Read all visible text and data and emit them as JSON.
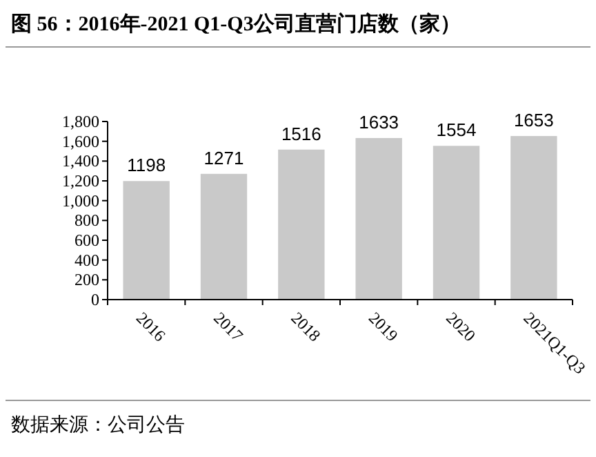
{
  "chart_data": {
    "type": "bar",
    "title": "图 56：2016年-2021 Q1-Q3公司直营门店数（家）",
    "categories": [
      "2016",
      "2017",
      "2018",
      "2019",
      "2020",
      "2021Q1-Q3"
    ],
    "values": [
      1198,
      1271,
      1516,
      1633,
      1554,
      1653
    ],
    "color": "#c9c9c9",
    "data_labels": true,
    "ylim": [
      0,
      1800
    ],
    "yticks": [
      0,
      {
        "value": 200,
        "label": "200"
      },
      {
        "value": 400,
        "label": "400"
      },
      {
        "value": 600,
        "label": "600"
      },
      {
        "value": 800,
        "label": "800"
      },
      {
        "value": 1000,
        "label": "1,000"
      },
      {
        "value": 1200,
        "label": "1,200"
      },
      {
        "value": 1400,
        "label": "1,400"
      },
      {
        "value": 1600,
        "label": "1,600"
      },
      {
        "value": 1800,
        "label": "1,800"
      }
    ],
    "grid": false,
    "annotations": [
      "数据来源：公司公告"
    ]
  }
}
